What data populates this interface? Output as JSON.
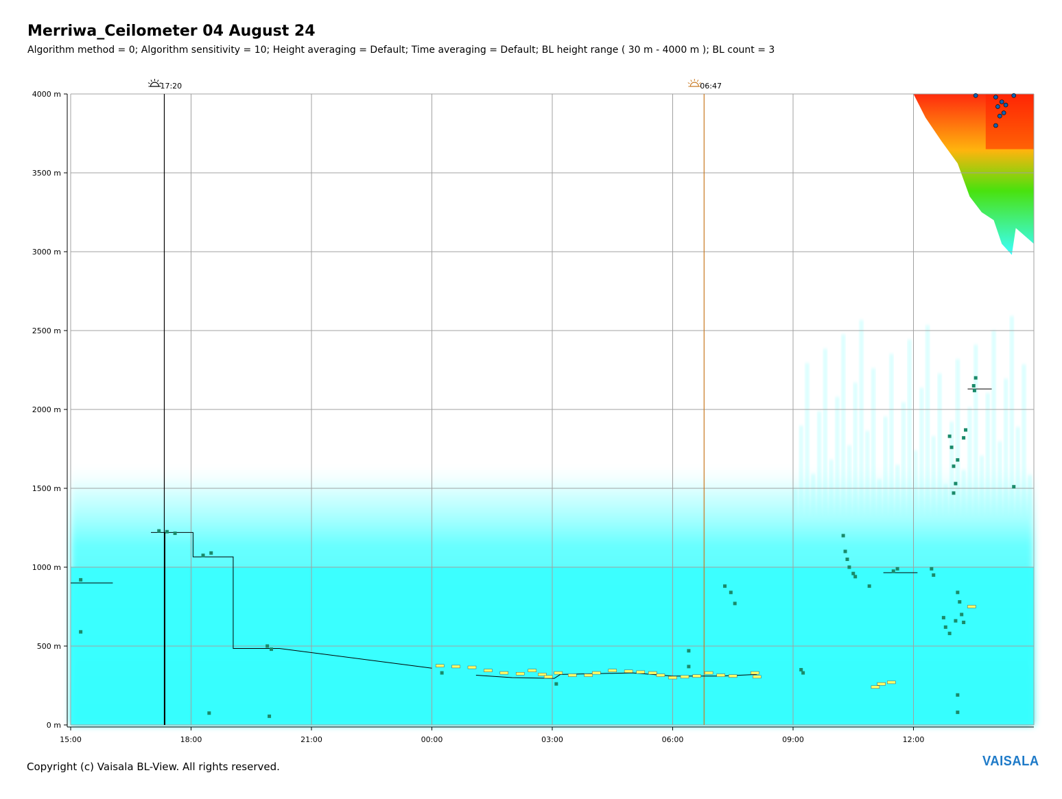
{
  "title": "Merriwa_Ceilometer 04 August 24",
  "subtitle": "Algorithm method = 0; Algorithm sensitivity = 10; Height averaging = Default; Time averaging = Default; BL height range ( 30 m - 4000 m ); BL count = 3",
  "copyright": "Copyright (c) Vaisala BL-View. All rights reserved.",
  "logo_text": "VAISALA",
  "colors": {
    "backscatter_low": "#33ffff",
    "backscatter_mid": "#a8ffff",
    "backscatter_high": "#ff2000",
    "bl_marker": "#1a8a6a",
    "aerosol_layer": "#ffff66",
    "sunset_line": "#000000",
    "sunrise_line": "#c87820",
    "grid": "#a0a0a0"
  },
  "sun_events": [
    {
      "label": "17:20",
      "type": "sunset",
      "icon": "sunset-icon",
      "hour": 2.333
    },
    {
      "label": "06:47",
      "type": "sunrise",
      "icon": "sunrise-icon",
      "hour": 15.783
    }
  ],
  "chart_data": {
    "type": "heatmap",
    "x_unit": "hours since 15:00",
    "x_ticks": [
      "15:00",
      "18:00",
      "21:00",
      "00:00",
      "03:00",
      "06:00",
      "09:00",
      "12:00"
    ],
    "x_tick_hours": [
      0,
      3,
      6,
      9,
      12,
      15,
      18,
      21
    ],
    "xlim": [
      0,
      24
    ],
    "y_ticks": [
      "0 m",
      "500 m",
      "1000 m",
      "1500 m",
      "2000 m",
      "2500 m",
      "3000 m",
      "3500 m",
      "4000 m"
    ],
    "y_tick_values": [
      0,
      500,
      1000,
      1500,
      2000,
      2500,
      3000,
      3500,
      4000
    ],
    "ylim": [
      0,
      4000
    ],
    "grid": true,
    "bl_height_line": [
      [
        0.0,
        900
      ],
      [
        1.05,
        900
      ],
      [
        1.05,
        900
      ],
      [
        2.0,
        1220
      ],
      [
        3.05,
        1220
      ],
      [
        3.05,
        1065
      ],
      [
        4.05,
        1065
      ],
      [
        4.05,
        485
      ],
      [
        5.2,
        485
      ],
      [
        9.0,
        360
      ],
      [
        10.1,
        315
      ],
      [
        11.0,
        300
      ],
      [
        12.05,
        295
      ],
      [
        12.2,
        320
      ],
      [
        14.0,
        330
      ],
      [
        15.0,
        310
      ],
      [
        16.2,
        310
      ],
      [
        17.1,
        320
      ],
      [
        20.25,
        965
      ],
      [
        21.1,
        965
      ],
      [
        22.35,
        2130
      ],
      [
        22.95,
        2130
      ]
    ],
    "bl_segments_breaks": [
      2,
      9,
      17,
      19
    ],
    "bl_points": [
      [
        0.25,
        920
      ],
      [
        0.25,
        590
      ],
      [
        2.2,
        1230
      ],
      [
        2.4,
        1225
      ],
      [
        2.6,
        1215
      ],
      [
        3.3,
        1075
      ],
      [
        3.5,
        1090
      ],
      [
        3.45,
        75
      ],
      [
        4.9,
        500
      ],
      [
        5.0,
        480
      ],
      [
        4.95,
        55
      ],
      [
        9.25,
        330
      ],
      [
        12.1,
        260
      ],
      [
        15.4,
        470
      ],
      [
        15.4,
        370
      ],
      [
        16.3,
        880
      ],
      [
        16.45,
        840
      ],
      [
        16.55,
        770
      ],
      [
        18.2,
        350
      ],
      [
        18.25,
        330
      ],
      [
        19.25,
        1200
      ],
      [
        19.3,
        1100
      ],
      [
        19.35,
        1050
      ],
      [
        19.4,
        1000
      ],
      [
        19.5,
        960
      ],
      [
        19.55,
        940
      ],
      [
        19.9,
        880
      ],
      [
        20.5,
        975
      ],
      [
        20.6,
        990
      ],
      [
        21.45,
        990
      ],
      [
        21.5,
        950
      ],
      [
        21.9,
        1830
      ],
      [
        21.95,
        1760
      ],
      [
        22.0,
        1640
      ],
      [
        22.05,
        1530
      ],
      [
        22.0,
        1470
      ],
      [
        22.1,
        1680
      ],
      [
        22.3,
        1870
      ],
      [
        22.25,
        1820
      ],
      [
        21.75,
        680
      ],
      [
        21.8,
        620
      ],
      [
        21.9,
        580
      ],
      [
        22.05,
        660
      ],
      [
        22.1,
        840
      ],
      [
        22.15,
        780
      ],
      [
        22.2,
        700
      ],
      [
        22.25,
        650
      ],
      [
        22.1,
        190
      ],
      [
        22.1,
        80
      ],
      [
        22.5,
        2150
      ],
      [
        22.55,
        2200
      ],
      [
        22.52,
        2120
      ],
      [
        23.5,
        1510
      ]
    ],
    "aerosol_layer": [
      [
        9.2,
        375
      ],
      [
        9.6,
        370
      ],
      [
        10.0,
        365
      ],
      [
        10.4,
        345
      ],
      [
        10.8,
        330
      ],
      [
        11.2,
        325
      ],
      [
        11.5,
        345
      ],
      [
        11.75,
        320
      ],
      [
        11.9,
        305
      ],
      [
        12.15,
        330
      ],
      [
        12.5,
        315
      ],
      [
        12.9,
        315
      ],
      [
        13.1,
        330
      ],
      [
        13.5,
        345
      ],
      [
        13.9,
        340
      ],
      [
        14.2,
        335
      ],
      [
        14.5,
        330
      ],
      [
        14.7,
        315
      ],
      [
        15.0,
        300
      ],
      [
        15.3,
        305
      ],
      [
        15.6,
        310
      ],
      [
        15.9,
        330
      ],
      [
        16.2,
        315
      ],
      [
        16.5,
        310
      ],
      [
        17.05,
        330
      ],
      [
        17.1,
        305
      ],
      [
        20.05,
        240
      ],
      [
        20.2,
        260
      ],
      [
        20.45,
        270
      ],
      [
        22.45,
        750
      ]
    ],
    "cloud_top_right": {
      "x_range": [
        21.0,
        24.0
      ],
      "y_range": [
        2950,
        4000
      ]
    }
  }
}
